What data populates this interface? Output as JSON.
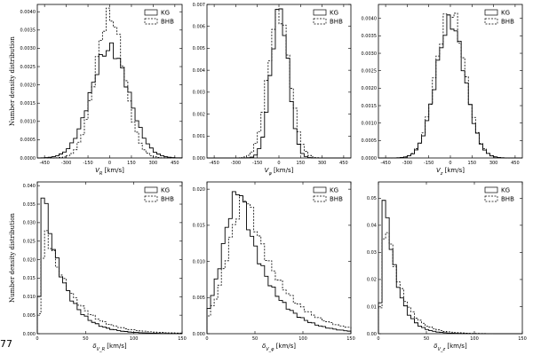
{
  "page_number": "77",
  "chart_data": [
    {
      "type": "histogram",
      "xlabel": "V_R [km/s]",
      "ylabel": "Number density distribution",
      "xlim": [
        -500,
        500
      ],
      "ylim": [
        0,
        0.0042
      ],
      "xticks": [
        -450,
        -300,
        -150,
        0,
        150,
        300,
        450
      ],
      "yticks": [
        0.0,
        0.0005,
        0.001,
        0.0015,
        0.002,
        0.0025,
        0.003,
        0.0035,
        0.004
      ],
      "ytick_labels": [
        "0.0000",
        "0.0005",
        "0.0010",
        "0.0015",
        "0.0020",
        "0.0025",
        "0.0030",
        "0.0035",
        "0.0040"
      ],
      "legend": [
        "KG",
        "BHB"
      ],
      "series": [
        {
          "name": "KG",
          "style": "solid",
          "kind": "gauss",
          "mu": 0,
          "sigma": 130,
          "peak": 0.003,
          "bins": 40
        },
        {
          "name": "BHB",
          "style": "dashed",
          "kind": "gauss",
          "mu": 0,
          "sigma": 100,
          "peak": 0.0039,
          "bins": 40
        }
      ]
    },
    {
      "type": "histogram",
      "xlabel": "V_φ [km/s]",
      "ylabel": "",
      "xlim": [
        -500,
        500
      ],
      "ylim": [
        0,
        0.007
      ],
      "xticks": [
        -450,
        -300,
        -150,
        0,
        150,
        300,
        450
      ],
      "yticks": [
        0,
        0.001,
        0.002,
        0.003,
        0.004,
        0.005,
        0.006,
        0.007
      ],
      "ytick_labels": [
        "0.000",
        "0.001",
        "0.002",
        "0.003",
        "0.004",
        "0.005",
        "0.006",
        "0.007"
      ],
      "legend": [
        "KG",
        "BHB"
      ],
      "series": [
        {
          "name": "KG",
          "style": "solid",
          "kind": "gauss",
          "mu": 5,
          "sigma": 60,
          "peak": 0.0068,
          "bins": 40
        },
        {
          "name": "BHB",
          "style": "dashed",
          "kind": "gauss",
          "mu": 0,
          "sigma": 75,
          "peak": 0.0066,
          "bins": 40
        }
      ]
    },
    {
      "type": "histogram",
      "xlabel": "V_z [km/s]",
      "ylabel": "",
      "xlim": [
        -500,
        500
      ],
      "ylim": [
        0,
        0.0044
      ],
      "xticks": [
        -450,
        -300,
        -150,
        0,
        150,
        300,
        450
      ],
      "yticks": [
        0.0,
        0.0005,
        0.001,
        0.0015,
        0.002,
        0.0025,
        0.003,
        0.0035,
        0.004
      ],
      "ytick_labels": [
        "0.0000",
        "0.0005",
        "0.0010",
        "0.0015",
        "0.0020",
        "0.0025",
        "0.0030",
        "0.0035",
        "0.0040"
      ],
      "legend": [
        "KG",
        "BHB"
      ],
      "series": [
        {
          "name": "KG",
          "style": "solid",
          "kind": "gauss",
          "mu": 0,
          "sigma": 100,
          "peak": 0.0039,
          "bins": 40
        },
        {
          "name": "BHB",
          "style": "dashed",
          "kind": "gauss",
          "mu": 0,
          "sigma": 100,
          "peak": 0.0042,
          "bins": 40
        }
      ]
    },
    {
      "type": "histogram",
      "xlabel": "δ_{V_R} [km/s]",
      "ylabel": "Number density distribution",
      "xlim": [
        0,
        150
      ],
      "ylim": [
        0,
        0.041
      ],
      "xticks": [
        0,
        50,
        100,
        150
      ],
      "yticks": [
        0,
        0.005,
        0.01,
        0.015,
        0.02,
        0.025,
        0.03,
        0.035,
        0.04
      ],
      "ytick_labels": [
        "0.000",
        "0.005",
        "0.010",
        "0.015",
        "0.020",
        "0.025",
        "0.030",
        "0.035",
        "0.040"
      ],
      "legend": [
        "KG",
        "BHB"
      ],
      "series": [
        {
          "name": "KG",
          "style": "solid",
          "kind": "skew",
          "mode": 6,
          "peak": 0.039,
          "decay": 18,
          "rise": 2.5,
          "bins": 40
        },
        {
          "name": "BHB",
          "style": "dashed",
          "kind": "skew",
          "mode": 9,
          "peak": 0.028,
          "decay": 24,
          "rise": 4,
          "bins": 40
        }
      ]
    },
    {
      "type": "histogram",
      "xlabel": "δ_{V_φ} [km/s]",
      "ylabel": "",
      "xlim": [
        0,
        150
      ],
      "ylim": [
        0,
        0.021
      ],
      "xticks": [
        0,
        50,
        100,
        150
      ],
      "yticks": [
        0,
        0.005,
        0.01,
        0.015,
        0.02
      ],
      "ytick_labels": [
        "0.000",
        "0.005",
        "0.010",
        "0.015",
        "0.020"
      ],
      "legend": [
        "KG",
        "BHB"
      ],
      "series": [
        {
          "name": "KG",
          "style": "solid",
          "kind": "skew",
          "mode": 35,
          "peak": 0.02,
          "decay": 25,
          "rise": 18,
          "bins": 40
        },
        {
          "name": "BHB",
          "style": "dashed",
          "kind": "skew",
          "mode": 42,
          "peak": 0.019,
          "decay": 30,
          "rise": 20,
          "bins": 40
        }
      ]
    },
    {
      "type": "histogram",
      "xlabel": "δ_{V_z} [km/s]",
      "ylabel": "",
      "xlim": [
        0,
        150
      ],
      "ylim": [
        0,
        0.056
      ],
      "xticks": [
        0,
        50,
        100,
        150
      ],
      "yticks": [
        0,
        0.01,
        0.02,
        0.03,
        0.04,
        0.05
      ],
      "ytick_labels": [
        "0.00",
        "0.01",
        "0.02",
        "0.03",
        "0.04",
        "0.05"
      ],
      "legend": [
        "KG",
        "BHB"
      ],
      "series": [
        {
          "name": "KG",
          "style": "solid",
          "kind": "skew",
          "mode": 7,
          "peak": 0.052,
          "decay": 11,
          "rise": 3,
          "bins": 40
        },
        {
          "name": "BHB",
          "style": "dashed",
          "kind": "skew",
          "mode": 8,
          "peak": 0.043,
          "decay": 14,
          "rise": 3.5,
          "bins": 40
        }
      ]
    }
  ]
}
